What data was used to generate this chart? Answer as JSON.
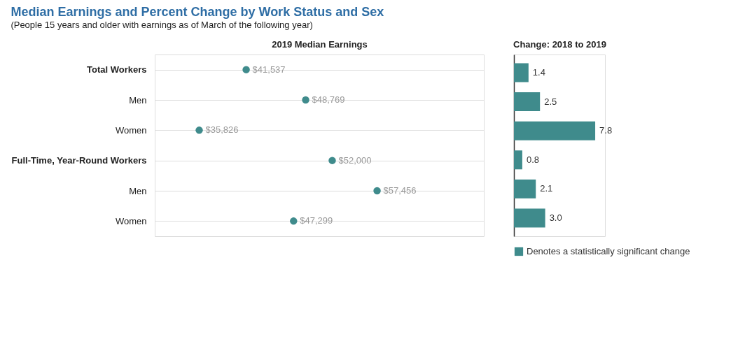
{
  "chart_data": [
    {
      "type": "scatter",
      "orientation": "horizontal",
      "title": "Median Earnings and Percent Change by Work Status and Sex",
      "subtitle": "(People 15 years and older with earnings as of March of the following year)",
      "xlabel": "2019 Median Earnings",
      "categories": [
        "Total Workers",
        "Men",
        "Women",
        "Full-Time, Year-Round Workers",
        "Men",
        "Women"
      ],
      "tick_labels": "y",
      "grid": "y",
      "series": [
        {
          "color": "#3f8b8c",
          "values": [
            41537,
            48769,
            35826,
            52000,
            57456,
            47299
          ],
          "value_labels": [
            "$41,537",
            "$48,769",
            "$35,826",
            "$52,000",
            "$57,456",
            "$47,299"
          ]
        }
      ]
    },
    {
      "type": "bar",
      "orientation": "horizontal",
      "xlabel": "Change: 2018 to 2019",
      "categories": [
        null,
        null,
        null,
        null,
        null,
        null
      ],
      "tick_labels": false,
      "legend": "bottom right",
      "series": [
        {
          "name": "Denotes a statistically significant change",
          "color": "#3f8b8c",
          "values": [
            1.4,
            2.5,
            7.8,
            0.8,
            2.1,
            3.0
          ],
          "value_labels": [
            "1.4",
            "2.5",
            "7.8",
            "0.8",
            "2.1",
            "3.0"
          ]
        }
      ]
    }
  ]
}
